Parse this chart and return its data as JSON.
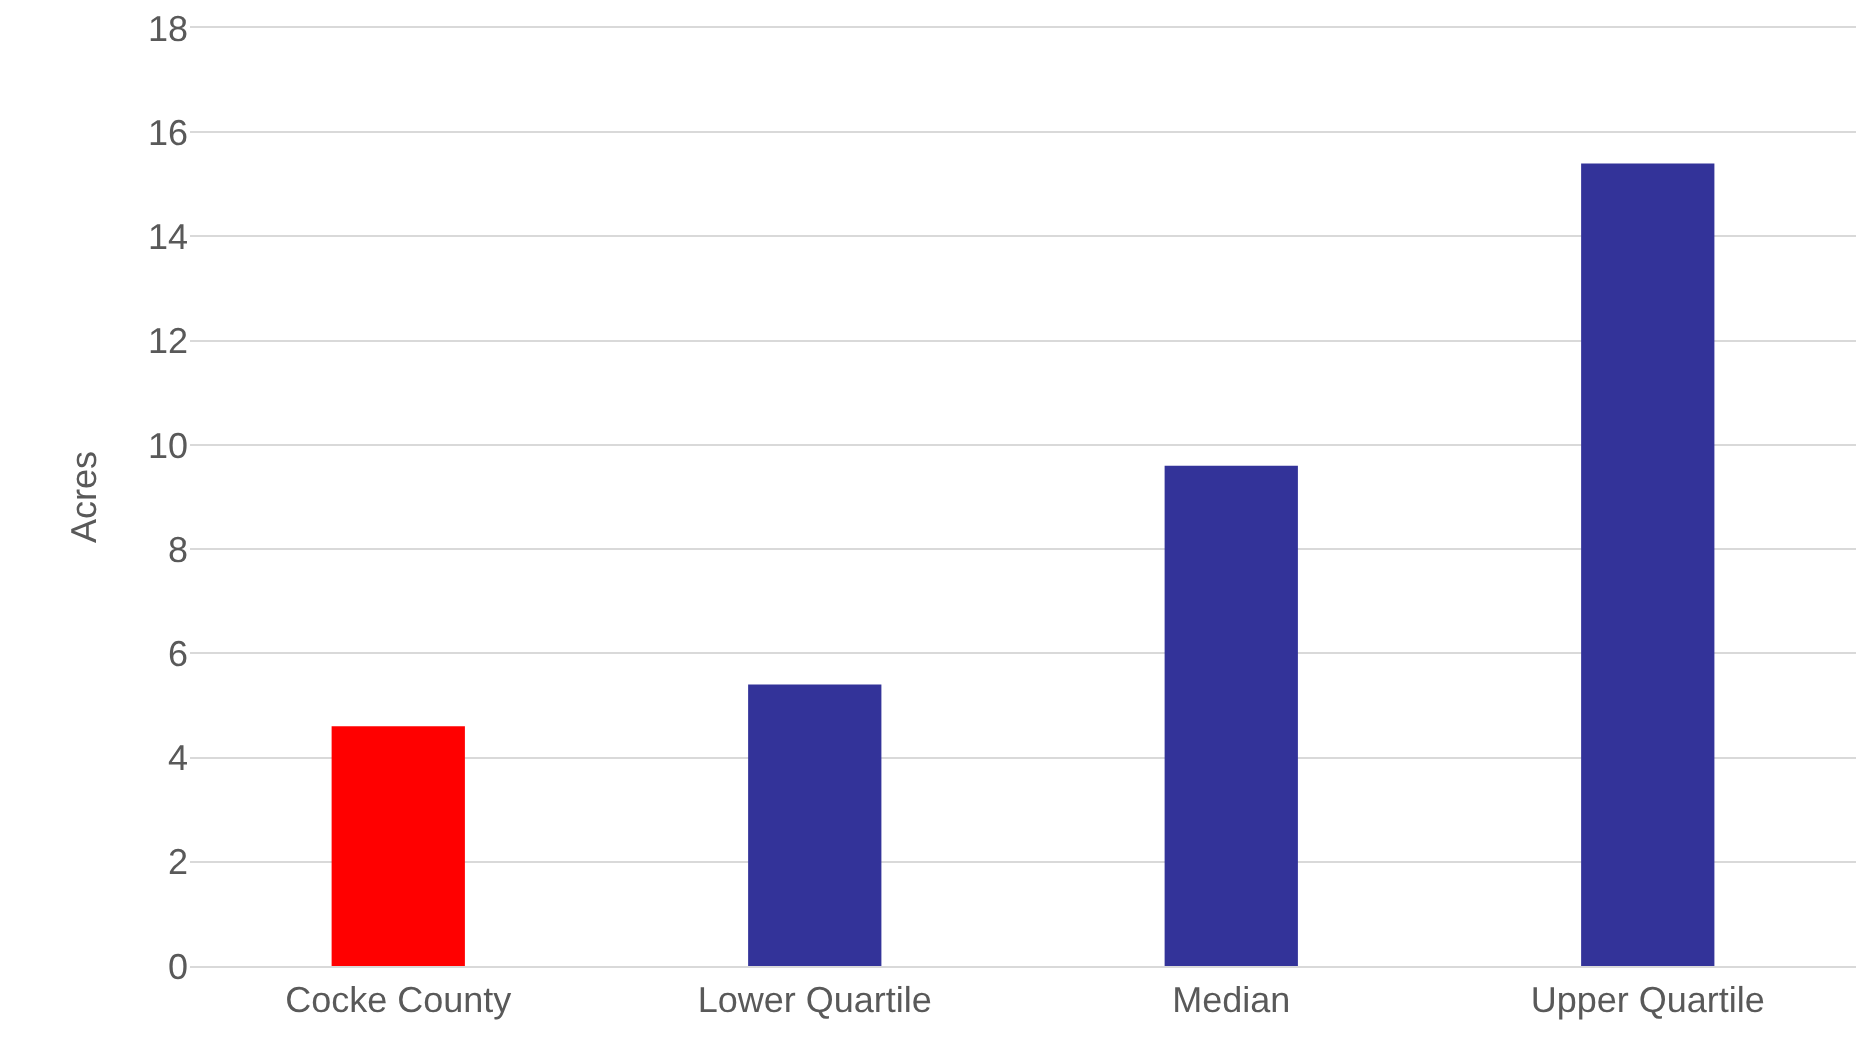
{
  "chart_data": {
    "type": "bar",
    "ylabel": "Acres",
    "categories": [
      "Cocke County",
      "Lower Quartile",
      "Median",
      "Upper Quartile"
    ],
    "values": [
      4.6,
      5.4,
      9.6,
      15.4
    ],
    "colors": [
      "#ff0000",
      "#333399",
      "#333399",
      "#333399"
    ],
    "ylim": [
      0,
      18
    ],
    "yticks": [
      0,
      2,
      4,
      6,
      8,
      10,
      12,
      14,
      16,
      18
    ],
    "grid": "y"
  }
}
